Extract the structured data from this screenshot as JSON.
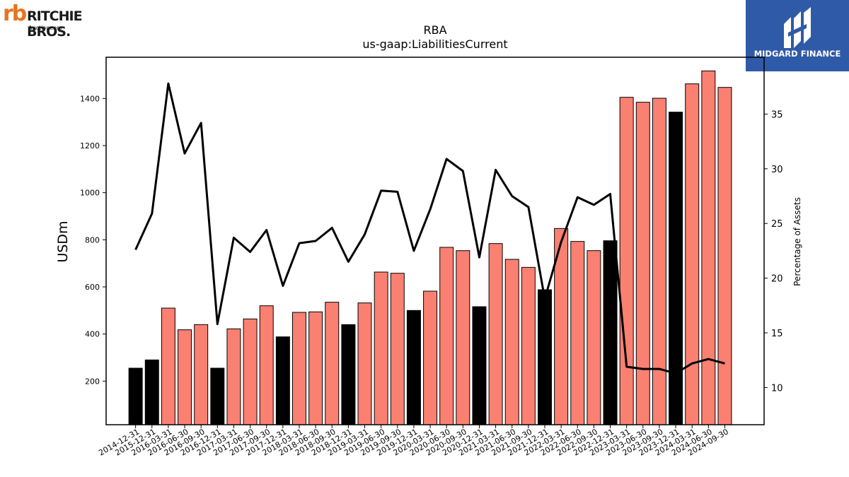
{
  "logos": {
    "left": {
      "mark": "rb",
      "name": "RITCHIE BROS.",
      "sub": "Auctioneers"
    },
    "right": {
      "name": "MIDGARD FINANCE",
      "background": "#2f5aa8"
    }
  },
  "chart_data": {
    "type": "bar",
    "title": "RBA",
    "subtitle": "us-gaap:LiabilitiesCurrent",
    "ylabel": "USDm",
    "y2label": "Percentage of Assets",
    "ylim": [
      15,
      1575
    ],
    "y2lim": [
      6.6,
      40.2
    ],
    "yticks": [
      200,
      400,
      600,
      800,
      1000,
      1200,
      1400
    ],
    "y2ticks": [
      10,
      15,
      20,
      25,
      30,
      35
    ],
    "colors": {
      "bar_default": "#fa8072",
      "bar_highlight": "#000000",
      "line": "#000000"
    },
    "categories": [
      "2014-12-31",
      "2015-12-31",
      "2016-03-31",
      "2016-06-30",
      "2016-09-30",
      "2016-12-31",
      "2017-03-31",
      "2017-06-30",
      "2017-09-30",
      "2017-12-31",
      "2018-03-31",
      "2018-06-30",
      "2018-09-30",
      "2018-12-31",
      "2019-03-31",
      "2019-06-30",
      "2019-09-30",
      "2019-12-31",
      "2020-03-31",
      "2020-06-30",
      "2020-09-30",
      "2020-12-31",
      "2021-03-31",
      "2021-06-30",
      "2021-09-30",
      "2021-12-31",
      "2022-03-31",
      "2022-06-30",
      "2022-09-30",
      "2022-12-31",
      "2023-03-31",
      "2023-06-30",
      "2023-09-30",
      "2023-12-31",
      "2024-03-31",
      "2024-06-30",
      "2024-09-30"
    ],
    "series": [
      {
        "type": "bar",
        "values": [
          255,
          290,
          510,
          418,
          440,
          255,
          422,
          464,
          520,
          388,
          492,
          494,
          535,
          440,
          532,
          663,
          658,
          500,
          582,
          768,
          754,
          516,
          784,
          717,
          683,
          588,
          848,
          793,
          754,
          796,
          1405,
          1384,
          1401,
          1342,
          1462,
          1517,
          1447
        ],
        "highlight": [
          true,
          true,
          false,
          false,
          false,
          true,
          false,
          false,
          false,
          true,
          false,
          false,
          false,
          true,
          false,
          false,
          false,
          true,
          false,
          false,
          false,
          true,
          false,
          false,
          false,
          true,
          false,
          false,
          false,
          true,
          false,
          false,
          false,
          true,
          false,
          false,
          false
        ]
      },
      {
        "type": "line",
        "axis": "right",
        "values": [
          22.6,
          25.9,
          37.8,
          31.4,
          34.2,
          15.8,
          23.7,
          22.4,
          24.4,
          19.3,
          23.2,
          23.4,
          24.6,
          21.5,
          24.0,
          28.0,
          27.9,
          22.5,
          26.3,
          30.9,
          29.8,
          21.9,
          29.9,
          27.5,
          26.5,
          18.1,
          23.3,
          27.4,
          26.7,
          27.7,
          11.9,
          11.7,
          11.7,
          11.3,
          12.2,
          12.6,
          12.2
        ]
      }
    ]
  }
}
